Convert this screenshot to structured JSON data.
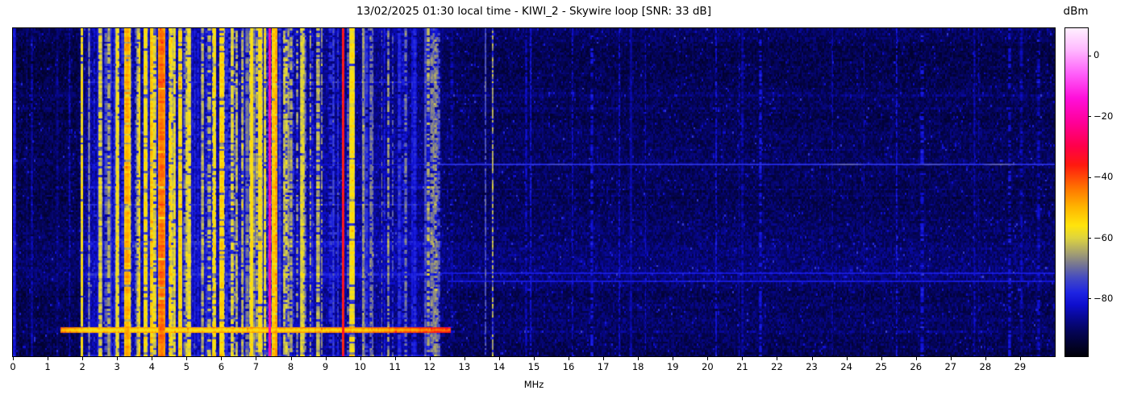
{
  "title": "13/02/2025 01:30 local time - KIWI_2 - Skywire loop [SNR: 33 dB]",
  "x_axis": {
    "label": "MHz",
    "tick_labels": [
      "0",
      "1",
      "2",
      "3",
      "4",
      "5",
      "6",
      "7",
      "8",
      "9",
      "10",
      "11",
      "12",
      "13",
      "14",
      "15",
      "16",
      "17",
      "18",
      "19",
      "20",
      "21",
      "22",
      "23",
      "24",
      "25",
      "26",
      "27",
      "28",
      "29"
    ]
  },
  "colorbar": {
    "label": "dBm",
    "tick_labels": [
      "0",
      "−20",
      "−40",
      "−60",
      "−80"
    ],
    "tick_values": [
      0,
      -20,
      -40,
      -60,
      -80
    ],
    "vmax": 9,
    "vmin": -99
  },
  "chart_data": {
    "type": "heatmap",
    "subtype": "radio-waterfall-spectrogram",
    "title": "13/02/2025 01:30 local time - KIWI_2 - Skywire loop [SNR: 33 dB]",
    "xlabel": "MHz",
    "x_range": [
      0,
      30
    ],
    "x_ticks": [
      0,
      1,
      2,
      3,
      4,
      5,
      6,
      7,
      8,
      9,
      10,
      11,
      12,
      13,
      14,
      15,
      16,
      17,
      18,
      19,
      20,
      21,
      22,
      23,
      24,
      25,
      26,
      27,
      28,
      29
    ],
    "y_axis": "time (waterfall rows, no tick labels shown)",
    "colorbar_label": "dBm",
    "colorbar_ticks": [
      0,
      -20,
      -40,
      -60,
      -80
    ],
    "value_range_dbm": [
      -99,
      9
    ],
    "snr_db": 33,
    "legend_position": "right-colorbar",
    "grid": false,
    "colormap_stops": [
      [
        9,
        255,
        240,
        255
      ],
      [
        2,
        255,
        185,
        255
      ],
      [
        -6,
        255,
        95,
        250
      ],
      [
        -14,
        255,
        15,
        218
      ],
      [
        -22,
        255,
        0,
        152
      ],
      [
        -30,
        255,
        0,
        72
      ],
      [
        -36,
        255,
        25,
        15
      ],
      [
        -44,
        255,
        120,
        0
      ],
      [
        -50,
        255,
        182,
        0
      ],
      [
        -56,
        255,
        228,
        12
      ],
      [
        -60,
        222,
        212,
        62
      ],
      [
        -65,
        165,
        160,
        112
      ],
      [
        -69,
        116,
        116,
        148
      ],
      [
        -73,
        70,
        76,
        192
      ],
      [
        -78,
        30,
        36,
        226
      ],
      [
        -82,
        14,
        14,
        206
      ],
      [
        -86,
        8,
        8,
        150
      ],
      [
        -91,
        4,
        4,
        86
      ],
      [
        -95,
        2,
        2,
        46
      ],
      [
        -99,
        0,
        0,
        8
      ]
    ],
    "render": {
      "seed": 20250213,
      "rows": 150,
      "noise_amp": 7,
      "bg_points": [
        [
          0,
          -90.5
        ],
        [
          1.85,
          -90
        ],
        [
          2.15,
          -84
        ],
        [
          5.0,
          -83
        ],
        [
          8.6,
          -84.5
        ],
        [
          10.1,
          -85
        ],
        [
          12.1,
          -86
        ],
        [
          12.6,
          -89
        ],
        [
          29.99,
          -89.5
        ]
      ],
      "stations": [
        [
          0.03,
          0.05,
          -80,
          1
        ],
        [
          1.62,
          0.03,
          -84,
          0.9
        ],
        [
          1.98,
          0.04,
          -56,
          0.95
        ],
        [
          2.18,
          0.03,
          -70,
          0.8
        ],
        [
          2.5,
          0.06,
          -60,
          0.85
        ],
        [
          2.75,
          0.05,
          -64,
          0.8
        ],
        [
          3.0,
          0.05,
          -57,
          0.85
        ],
        [
          3.28,
          0.09,
          -49,
          0.9
        ],
        [
          3.6,
          0.05,
          -62,
          0.8
        ],
        [
          3.8,
          0.06,
          -55,
          0.85
        ],
        [
          3.98,
          0.05,
          -52,
          0.9
        ],
        [
          4.27,
          0.11,
          -43,
          0.95
        ],
        [
          4.55,
          0.05,
          -58,
          0.85
        ],
        [
          4.8,
          0.06,
          -54,
          0.85
        ],
        [
          5.0,
          0.05,
          -60,
          0.8
        ],
        [
          5.45,
          0.04,
          -63,
          0.8
        ],
        [
          5.8,
          0.05,
          -57,
          0.85
        ],
        [
          6.0,
          0.07,
          -53,
          0.9
        ],
        [
          6.3,
          0.05,
          -59,
          0.8
        ],
        [
          6.6,
          0.04,
          -62,
          0.8
        ],
        [
          6.85,
          0.05,
          -57,
          0.85
        ],
        [
          7.1,
          0.06,
          -55,
          0.9
        ],
        [
          7.25,
          0.04,
          -58,
          0.85
        ],
        [
          7.38,
          0.03,
          -18,
          1
        ],
        [
          7.5,
          0.06,
          -52,
          0.95
        ],
        [
          7.57,
          0.03,
          -47,
          0.95
        ],
        [
          8.0,
          0.04,
          -64,
          0.75
        ],
        [
          8.35,
          0.04,
          -60,
          0.8
        ],
        [
          9.5,
          0.03,
          -33,
          1
        ],
        [
          9.75,
          0.09,
          -56,
          0.9
        ],
        [
          10.3,
          0.04,
          -68,
          0.7
        ],
        [
          10.8,
          0.04,
          -66,
          0.7
        ],
        [
          11.3,
          0.04,
          -69,
          0.7
        ],
        [
          11.95,
          0.05,
          -64,
          0.55
        ],
        [
          12.15,
          0.05,
          -66,
          0.5
        ],
        [
          13.6,
          0.025,
          -72,
          0.8
        ],
        [
          13.8,
          0.025,
          -63,
          0.6
        ],
        [
          14.9,
          0.02,
          -80,
          0.8
        ],
        [
          16.1,
          0.02,
          -82,
          0.7
        ],
        [
          17.45,
          0.02,
          -81,
          0.8
        ],
        [
          18.2,
          0.02,
          -83,
          0.7
        ],
        [
          20.9,
          0.02,
          -84,
          0.6
        ],
        [
          24.5,
          0.02,
          -84,
          0.6
        ],
        [
          27.8,
          0.02,
          -85,
          0.5
        ]
      ],
      "proc_bands": [
        [
          2.05,
          5.3,
          0.8,
          -81,
          -52,
          0.05,
          0.13,
          0.45,
          1.0
        ],
        [
          5.3,
          8.6,
          0.75,
          -81,
          -54,
          0.05,
          0.14,
          0.45,
          1.0
        ],
        [
          8.6,
          10.1,
          0.55,
          -82,
          -60,
          0.07,
          0.16,
          0.4,
          1.0
        ],
        [
          10.1,
          12.3,
          0.65,
          -83,
          -66,
          0.05,
          0.12,
          0.4,
          1.0
        ],
        [
          12.3,
          29.7,
          0.3,
          -86,
          -80,
          0.2,
          0.55,
          0.5,
          1.0
        ],
        [
          0.15,
          1.9,
          0.3,
          -88,
          -83,
          0.12,
          0.3,
          0.6,
          1.0
        ]
      ],
      "h_lines": [
        {
          "y_frac": 0.414,
          "f0": 11.8,
          "f1": 29.99,
          "level": -77,
          "px": 2,
          "blips": true
        },
        {
          "y_frac": 0.414,
          "f0": 2.1,
          "f1": 11.8,
          "level": -82,
          "px": 2,
          "blips": false
        },
        {
          "y_frac": 0.744,
          "f0": 12.3,
          "f1": 29.99,
          "level": -80,
          "px": 2,
          "blips": false
        },
        {
          "y_frac": 0.769,
          "f0": 12.5,
          "f1": 29.99,
          "level": -80,
          "px": 2,
          "blips": false
        }
      ],
      "line_blips": [
        [
          15.7,
          -74
        ],
        [
          24.0,
          -71
        ],
        [
          26.5,
          -73
        ],
        [
          28.4,
          -71
        ]
      ],
      "smear": {
        "y_frac": 0.918,
        "f0": 1.35,
        "f1": 12.6,
        "level": -58,
        "half_rows": 3,
        "curve_center": 4.0,
        "curve_amp": 8
      }
    }
  }
}
